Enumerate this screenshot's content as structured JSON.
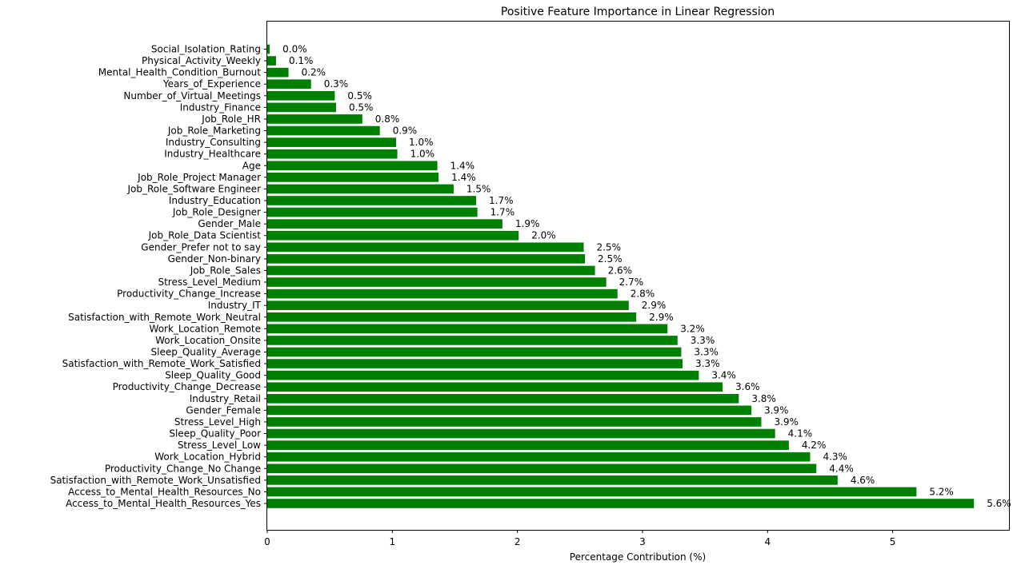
{
  "chart_data": {
    "type": "bar",
    "orientation": "horizontal",
    "title": "Positive Feature Importance in Linear Regression",
    "xlabel": "Percentage Contribution (%)",
    "ylabel": "",
    "xlim": [
      0,
      5.93
    ],
    "xticks": [
      0,
      1,
      2,
      3,
      4,
      5
    ],
    "bar_color": "#008000",
    "grid": false,
    "categories": [
      "Social_Isolation_Rating",
      "Physical_Activity_Weekly",
      "Mental_Health_Condition_Burnout",
      "Years_of_Experience",
      "Number_of_Virtual_Meetings",
      "Industry_Finance",
      "Job_Role_HR",
      "Job_Role_Marketing",
      "Industry_Consulting",
      "Industry_Healthcare",
      "Age",
      "Job_Role_Project Manager",
      "Job_Role_Software Engineer",
      "Industry_Education",
      "Job_Role_Designer",
      "Gender_Male",
      "Job_Role_Data Scientist",
      "Gender_Prefer not to say",
      "Gender_Non-binary",
      "Job_Role_Sales",
      "Stress_Level_Medium",
      "Productivity_Change_Increase",
      "Industry_IT",
      "Satisfaction_with_Remote_Work_Neutral",
      "Work_Location_Remote",
      "Work_Location_Onsite",
      "Sleep_Quality_Average",
      "Satisfaction_with_Remote_Work_Satisfied",
      "Sleep_Quality_Good",
      "Productivity_Change_Decrease",
      "Industry_Retail",
      "Gender_Female",
      "Stress_Level_High",
      "Sleep_Quality_Poor",
      "Stress_Level_Low",
      "Work_Location_Hybrid",
      "Productivity_Change_No Change",
      "Satisfaction_with_Remote_Work_Unsatisfied",
      "Access_to_Mental_Health_Resources_No",
      "Access_to_Mental_Health_Resources_Yes"
    ],
    "values": [
      0.02,
      0.07,
      0.17,
      0.35,
      0.54,
      0.55,
      0.76,
      0.9,
      1.03,
      1.04,
      1.36,
      1.37,
      1.49,
      1.67,
      1.68,
      1.88,
      2.01,
      2.53,
      2.54,
      2.62,
      2.71,
      2.8,
      2.89,
      2.95,
      3.2,
      3.28,
      3.31,
      3.32,
      3.45,
      3.64,
      3.77,
      3.87,
      3.95,
      4.06,
      4.17,
      4.34,
      4.39,
      4.56,
      5.19,
      5.65
    ],
    "value_labels": [
      "0.0%",
      "0.1%",
      "0.2%",
      "0.3%",
      "0.5%",
      "0.5%",
      "0.8%",
      "0.9%",
      "1.0%",
      "1.0%",
      "1.4%",
      "1.4%",
      "1.5%",
      "1.7%",
      "1.7%",
      "1.9%",
      "2.0%",
      "2.5%",
      "2.5%",
      "2.6%",
      "2.7%",
      "2.8%",
      "2.9%",
      "2.9%",
      "3.2%",
      "3.3%",
      "3.3%",
      "3.3%",
      "3.4%",
      "3.6%",
      "3.8%",
      "3.9%",
      "3.9%",
      "4.1%",
      "4.2%",
      "4.3%",
      "4.4%",
      "4.6%",
      "5.2%",
      "5.6%"
    ]
  }
}
